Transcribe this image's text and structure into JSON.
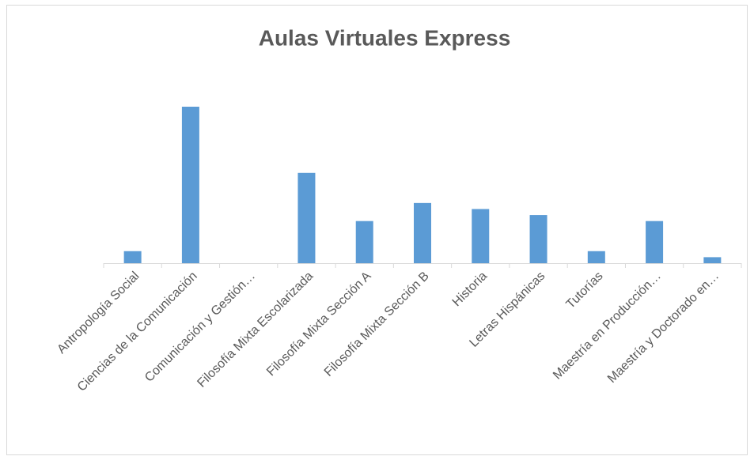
{
  "chart_data": {
    "type": "bar",
    "title": "Aulas Virtuales Express",
    "categories": [
      "Antropología Social",
      "Ciencias de la Comunicación",
      "Comunicación y Gestión…",
      "Filosofía Mixta Escolarizada",
      "Filosofía Mixta  Sección A",
      "Filosofía Mixta  Sección B",
      "Historia",
      "Letras Hispánicas",
      "Tutorías",
      "Maestría en Producción…",
      "Maestría y Doctorado en…"
    ],
    "values": [
      2,
      26,
      0,
      15,
      7,
      10,
      9,
      8,
      2,
      7,
      1
    ],
    "color": "#5b9bd5"
  }
}
